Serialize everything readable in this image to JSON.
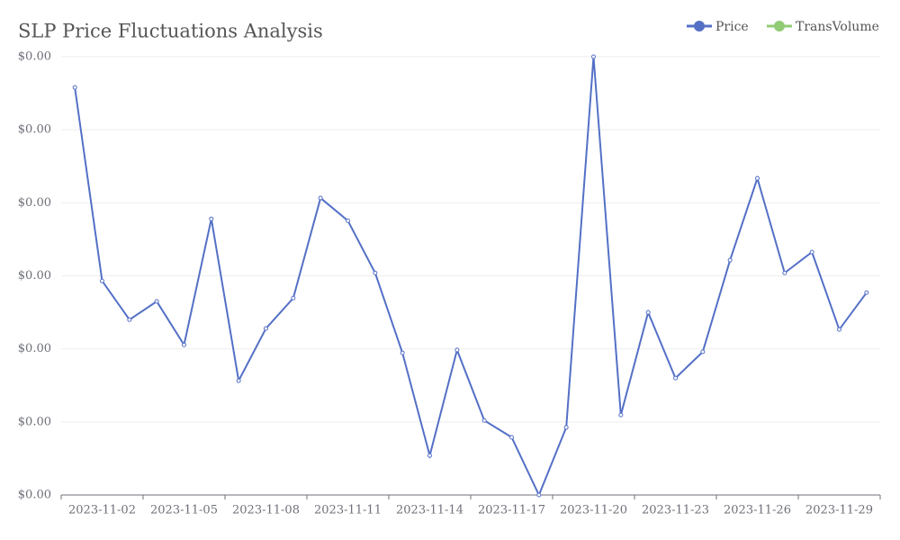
{
  "chart_data": {
    "type": "line",
    "title": "SLP Price Fluctuations Analysis",
    "categories": [
      null,
      "2023-11-02",
      null,
      null,
      "2023-11-05",
      null,
      null,
      "2023-11-08",
      null,
      null,
      "2023-11-11",
      null,
      null,
      "2023-11-14",
      null,
      null,
      "2023-11-17",
      null,
      null,
      "2023-11-20",
      null,
      null,
      "2023-11-23",
      null,
      null,
      "2023-11-26",
      null,
      null,
      "2023-11-29",
      null
    ],
    "series": [
      {
        "name": "Price",
        "color": "#5470c6",
        "values": [
          0.003916,
          0.003386,
          0.00328,
          0.00333,
          0.003211,
          0.003556,
          0.003113,
          0.003256,
          0.003339,
          0.003613,
          0.003551,
          0.003408,
          0.003189,
          0.002908,
          0.003197,
          0.003004,
          0.002958,
          0.0028,
          0.002985,
          0.004,
          0.003019,
          0.0033,
          0.00312,
          0.003192,
          0.003443,
          0.003667,
          0.003408,
          0.003465,
          0.003253,
          0.003354
        ]
      },
      {
        "name": "TransVolume",
        "color": "#91cc75"
      }
    ],
    "ylim": [
      0.0028,
      0.004
    ],
    "yticks": [
      {
        "value": 0.0028,
        "label": "$0.00"
      },
      {
        "value": 0.003,
        "label": "$0.00"
      },
      {
        "value": 0.0032,
        "label": "$0.00"
      },
      {
        "value": 0.0034,
        "label": "$0.00"
      },
      {
        "value": 0.0036,
        "label": "$0.00"
      },
      {
        "value": 0.0038,
        "label": "$0.00"
      },
      {
        "value": 0.004,
        "label": "$0.00"
      }
    ],
    "grid": true,
    "legend": "top-right"
  }
}
